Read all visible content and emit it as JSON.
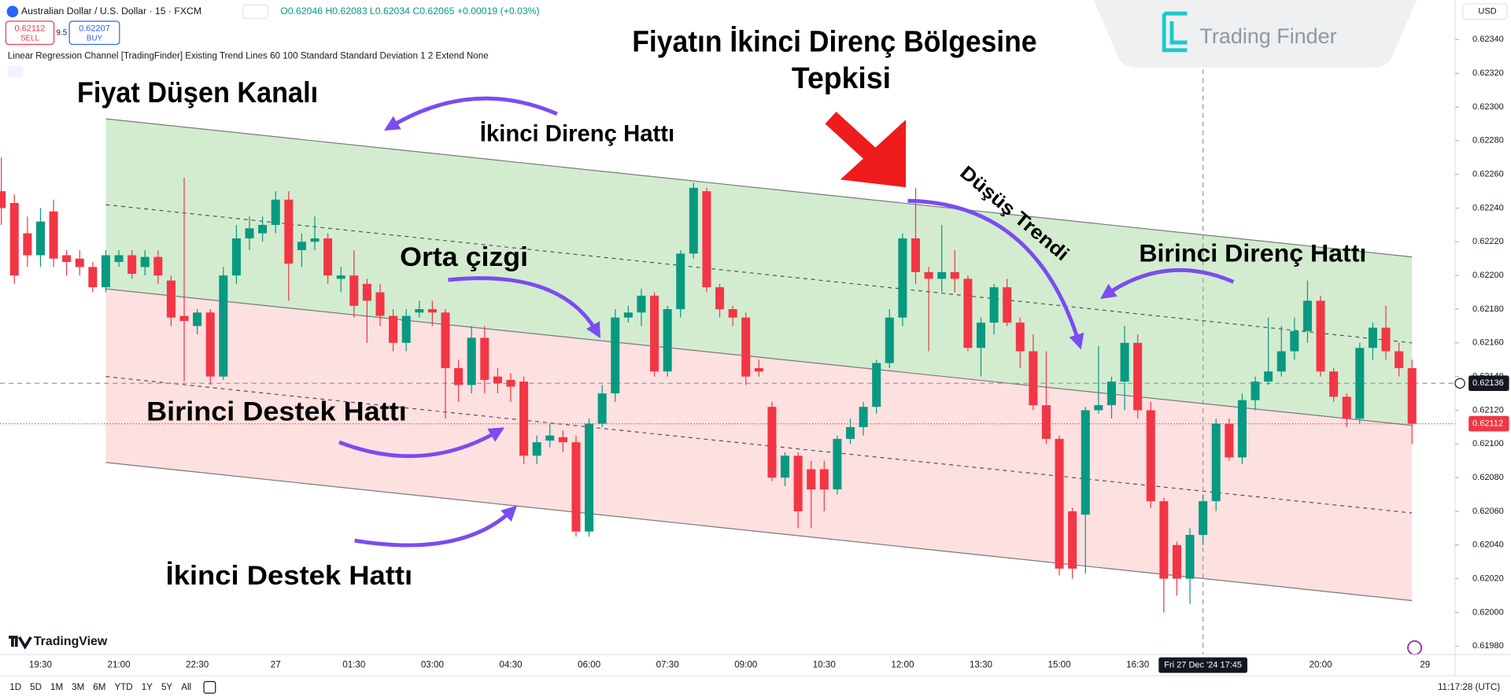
{
  "chart_data": {
    "type": "candlestick",
    "title": "Australian Dollar / U.S. Dollar · 15 · FXCM",
    "ohlc_text": "O0.62046 H0.62083 L0.62034 C0.62065 +0.00019 (+0.03%)",
    "sell": {
      "price": "0.62112",
      "label": "SELL"
    },
    "spread": "9.5",
    "buy": {
      "price": "0.62207",
      "label": "BUY"
    },
    "indicator": "Linear Regression Channel [TradingFinder] Existing Trend Lines 60 100 Standard Standard Deviation 1 2 Extend None",
    "currency": "USD",
    "brand": "Trading Finder",
    "up_color": "#089981",
    "down_color": "#f23645",
    "ylim": [
      0.61975,
      0.623635
    ],
    "yticks": [
      {
        "value": 0.6198,
        "label": "0.61980"
      },
      {
        "value": 0.62,
        "label": "0.62000"
      },
      {
        "value": 0.6202,
        "label": "0.62020"
      },
      {
        "value": 0.6204,
        "label": "0.62040"
      },
      {
        "value": 0.6206,
        "label": "0.62060"
      },
      {
        "value": 0.6208,
        "label": "0.62080"
      },
      {
        "value": 0.621,
        "label": "0.62100"
      },
      {
        "value": 0.6212,
        "label": "0.62120"
      },
      {
        "value": 0.6214,
        "label": "0.62140"
      },
      {
        "value": 0.6216,
        "label": "0.62160"
      },
      {
        "value": 0.6218,
        "label": "0.62180"
      },
      {
        "value": 0.622,
        "label": "0.62200"
      },
      {
        "value": 0.6222,
        "label": "0.62220"
      },
      {
        "value": 0.6224,
        "label": "0.62240"
      },
      {
        "value": 0.6226,
        "label": "0.62260"
      },
      {
        "value": 0.6228,
        "label": "0.62280"
      },
      {
        "value": 0.623,
        "label": "0.62300"
      },
      {
        "value": 0.6232,
        "label": "0.62320"
      },
      {
        "value": 0.6234,
        "label": "0.62340"
      }
    ],
    "xlim": [
      -0.1,
      111.3
    ],
    "xticks": [
      {
        "value": 3,
        "label": "19:30"
      },
      {
        "value": 9,
        "label": "21:00"
      },
      {
        "value": 15,
        "label": "22:30"
      },
      {
        "value": 21,
        "label": "27"
      },
      {
        "value": 27,
        "label": "01:30"
      },
      {
        "value": 33,
        "label": "03:00"
      },
      {
        "value": 39,
        "label": "04:30"
      },
      {
        "value": 45,
        "label": "06:00"
      },
      {
        "value": 51,
        "label": "07:30"
      },
      {
        "value": 57,
        "label": "09:00"
      },
      {
        "value": 63,
        "label": "10:30"
      },
      {
        "value": 69,
        "label": "12:00"
      },
      {
        "value": 75,
        "label": "13:30"
      },
      {
        "value": 81,
        "label": "15:00"
      },
      {
        "value": 87,
        "label": "16:30"
      },
      {
        "value": 101,
        "label": "20:00"
      },
      {
        "value": 109,
        "label": "29"
      }
    ],
    "crosshair": {
      "x": 92,
      "x_label": "Fri 27 Dec '24  17:45",
      "y": 0.62136
    },
    "last_price": 0.62112,
    "channel_lines": [
      [
        0.62293,
        0.62211
      ],
      [
        0.62242,
        0.6216
      ],
      [
        0.62192,
        0.62111
      ],
      [
        0.6214,
        0.62059
      ],
      [
        0.62089,
        0.62007
      ]
    ],
    "candles": [
      [
        0.6225,
        0.6227,
        0.6223,
        0.6224
      ],
      [
        0.62243,
        0.62248,
        0.62195,
        0.622
      ],
      [
        0.62225,
        0.62235,
        0.62205,
        0.62212
      ],
      [
        0.62212,
        0.6224,
        0.62205,
        0.62232
      ],
      [
        0.62238,
        0.62245,
        0.62205,
        0.6221
      ],
      [
        0.62212,
        0.62215,
        0.622,
        0.62208
      ],
      [
        0.6221,
        0.62215,
        0.622,
        0.62205
      ],
      [
        0.62205,
        0.62208,
        0.6219,
        0.62193
      ],
      [
        0.62193,
        0.62215,
        0.6219,
        0.62212
      ],
      [
        0.62208,
        0.62215,
        0.62205,
        0.62212
      ],
      [
        0.62212,
        0.62215,
        0.62198,
        0.62201
      ],
      [
        0.62205,
        0.62215,
        0.622,
        0.62211
      ],
      [
        0.62211,
        0.62215,
        0.62195,
        0.622
      ],
      [
        0.62197,
        0.622,
        0.6217,
        0.62175
      ],
      [
        0.62176,
        0.62258,
        0.62137,
        0.62173
      ],
      [
        0.6217,
        0.6218,
        0.62165,
        0.62178
      ],
      [
        0.62178,
        0.6218,
        0.62135,
        0.6214
      ],
      [
        0.6214,
        0.62205,
        0.62138,
        0.622
      ],
      [
        0.622,
        0.6223,
        0.62195,
        0.62222
      ],
      [
        0.62222,
        0.62235,
        0.62215,
        0.62228
      ],
      [
        0.62225,
        0.62235,
        0.6222,
        0.6223
      ],
      [
        0.6223,
        0.6225,
        0.62225,
        0.62245
      ],
      [
        0.62245,
        0.6225,
        0.62185,
        0.62207
      ],
      [
        0.62215,
        0.62225,
        0.62205,
        0.6222
      ],
      [
        0.6222,
        0.62235,
        0.62215,
        0.62222
      ],
      [
        0.62222,
        0.62225,
        0.62195,
        0.622
      ],
      [
        0.62198,
        0.62205,
        0.6219,
        0.622
      ],
      [
        0.622,
        0.62215,
        0.62175,
        0.62182
      ],
      [
        0.62195,
        0.62198,
        0.6216,
        0.62185
      ],
      [
        0.6219,
        0.62195,
        0.6217,
        0.62176
      ],
      [
        0.62176,
        0.6218,
        0.62155,
        0.6216
      ],
      [
        0.6216,
        0.6218,
        0.62155,
        0.62176
      ],
      [
        0.62178,
        0.62185,
        0.62175,
        0.6218
      ],
      [
        0.6218,
        0.62185,
        0.6217,
        0.62178
      ],
      [
        0.62178,
        0.6218,
        0.62115,
        0.62145
      ],
      [
        0.62145,
        0.6215,
        0.62125,
        0.62135
      ],
      [
        0.62135,
        0.6217,
        0.6213,
        0.62163
      ],
      [
        0.62163,
        0.6217,
        0.6213,
        0.62138
      ],
      [
        0.6214,
        0.62145,
        0.6213,
        0.62136
      ],
      [
        0.62138,
        0.62142,
        0.62125,
        0.62134
      ],
      [
        0.62137,
        0.6214,
        0.62088,
        0.62093
      ],
      [
        0.62093,
        0.62105,
        0.62088,
        0.62101
      ],
      [
        0.62102,
        0.62112,
        0.62098,
        0.62105
      ],
      [
        0.62104,
        0.62108,
        0.62095,
        0.62101
      ],
      [
        0.62101,
        0.62105,
        0.62045,
        0.62048
      ],
      [
        0.62048,
        0.62115,
        0.62045,
        0.62112
      ],
      [
        0.62112,
        0.62135,
        0.6211,
        0.6213
      ],
      [
        0.6213,
        0.6218,
        0.62125,
        0.62175
      ],
      [
        0.62175,
        0.62182,
        0.62172,
        0.62178
      ],
      [
        0.62178,
        0.62192,
        0.6217,
        0.62188
      ],
      [
        0.62188,
        0.6219,
        0.6214,
        0.62143
      ],
      [
        0.62143,
        0.62182,
        0.6214,
        0.6218
      ],
      [
        0.6218,
        0.62215,
        0.62175,
        0.62213
      ],
      [
        0.62213,
        0.62255,
        0.6221,
        0.62252
      ],
      [
        0.6225,
        0.62252,
        0.6219,
        0.62193
      ],
      [
        0.62193,
        0.62195,
        0.62175,
        0.6218
      ],
      [
        0.6218,
        0.62182,
        0.6217,
        0.62175
      ],
      [
        0.62175,
        0.62178,
        0.62135,
        0.6214
      ],
      [
        0.62145,
        0.6215,
        0.6214,
        0.62143
      ],
      [
        0.62122,
        0.62125,
        0.62078,
        0.6208
      ],
      [
        0.6208,
        0.62095,
        0.62075,
        0.62093
      ],
      [
        0.62093,
        0.62095,
        0.6205,
        0.6206
      ],
      [
        0.62085,
        0.6209,
        0.6205,
        0.62073
      ],
      [
        0.62085,
        0.6209,
        0.6206,
        0.62073
      ],
      [
        0.62073,
        0.62105,
        0.6207,
        0.62103
      ],
      [
        0.62103,
        0.62115,
        0.621,
        0.6211
      ],
      [
        0.6211,
        0.62125,
        0.62105,
        0.62122
      ],
      [
        0.62122,
        0.6215,
        0.62118,
        0.62148
      ],
      [
        0.62148,
        0.6218,
        0.62145,
        0.62175
      ],
      [
        0.62175,
        0.62225,
        0.6217,
        0.62222
      ],
      [
        0.62222,
        0.62252,
        0.62195,
        0.62202
      ],
      [
        0.62202,
        0.62205,
        0.62155,
        0.62198
      ],
      [
        0.62198,
        0.6223,
        0.6219,
        0.62202
      ],
      [
        0.62202,
        0.62215,
        0.6219,
        0.62198
      ],
      [
        0.62198,
        0.622,
        0.62155,
        0.62157
      ],
      [
        0.62157,
        0.62175,
        0.6214,
        0.62172
      ],
      [
        0.62172,
        0.62195,
        0.62165,
        0.62193
      ],
      [
        0.62193,
        0.62198,
        0.6217,
        0.62172
      ],
      [
        0.62172,
        0.62175,
        0.62145,
        0.62155
      ],
      [
        0.62155,
        0.62165,
        0.6212,
        0.62123
      ],
      [
        0.62123,
        0.62155,
        0.621,
        0.62103
      ],
      [
        0.62103,
        0.62105,
        0.62022,
        0.62026
      ],
      [
        0.6206,
        0.62062,
        0.6202,
        0.62026
      ],
      [
        0.62058,
        0.62122,
        0.62023,
        0.6212
      ],
      [
        0.6212,
        0.62158,
        0.62118,
        0.62123
      ],
      [
        0.62123,
        0.6214,
        0.62115,
        0.62137
      ],
      [
        0.62137,
        0.6217,
        0.6212,
        0.6216
      ],
      [
        0.6216,
        0.62165,
        0.62115,
        0.6212
      ],
      [
        0.6212,
        0.62125,
        0.62062,
        0.62066
      ],
      [
        0.62066,
        0.62068,
        0.62,
        0.6202
      ],
      [
        0.6204,
        0.62042,
        0.6201,
        0.6202
      ],
      [
        0.6202,
        0.6205,
        0.62005,
        0.62046
      ],
      [
        0.62046,
        0.6207,
        0.6204,
        0.62066
      ],
      [
        0.62066,
        0.62115,
        0.6206,
        0.62112
      ],
      [
        0.62112,
        0.62115,
        0.6209,
        0.62092
      ],
      [
        0.62092,
        0.6213,
        0.62088,
        0.62126
      ],
      [
        0.62126,
        0.6214,
        0.6212,
        0.62137
      ],
      [
        0.62137,
        0.62175,
        0.62135,
        0.62143
      ],
      [
        0.62143,
        0.6217,
        0.6214,
        0.62155
      ],
      [
        0.62155,
        0.62175,
        0.6215,
        0.62167
      ],
      [
        0.62167,
        0.62197,
        0.6216,
        0.62185
      ],
      [
        0.62185,
        0.62188,
        0.6214,
        0.62143
      ],
      [
        0.62143,
        0.62145,
        0.62125,
        0.62128
      ],
      [
        0.62128,
        0.6213,
        0.6211,
        0.62115
      ],
      [
        0.62115,
        0.6216,
        0.62112,
        0.62157
      ],
      [
        0.62157,
        0.62172,
        0.6215,
        0.62169
      ],
      [
        0.62169,
        0.62182,
        0.6215,
        0.62155
      ],
      [
        0.62155,
        0.6216,
        0.6214,
        0.62145
      ],
      [
        0.62145,
        0.6215,
        0.621,
        0.62112
      ]
    ],
    "annotations": {
      "channel_title": "Fiyat Düşen Kanalı",
      "second_resistance": "İkinci Direnç Hattı",
      "reaction_line1": "Fiyatın İkinci Direnç Bölgesine",
      "reaction_line2": "Tepkisi",
      "downtrend": "Düşüş Trendi",
      "middle_line": "Orta çizgi",
      "first_resistance": "Birinci Direnç Hattı",
      "first_support": "Birinci Destek Hattı",
      "second_support": "İkinci Destek Hattı"
    },
    "platform": "TradingView",
    "timeframes": [
      "1D",
      "5D",
      "1M",
      "3M",
      "6M",
      "YTD",
      "1Y",
      "5Y",
      "All"
    ],
    "clock": "11:17:28 (UTC)"
  }
}
